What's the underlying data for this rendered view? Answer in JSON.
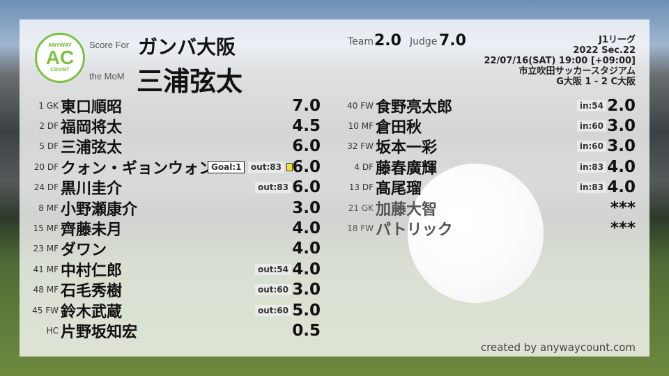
{
  "header": {
    "logo_text": "AC",
    "logo_top": "ANYWAY",
    "logo_bottom": "COUNT",
    "score_for_label": "Score For",
    "team": "ガンバ大阪",
    "mom_label": "the MoM",
    "mom": "三浦弦太",
    "team_label": "Team",
    "team_score": "2.0",
    "judge_label": "Judge",
    "judge_score": "7.0"
  },
  "match": {
    "league": "J1リーグ",
    "season": "2022 Sec.22",
    "datetime": "22/07/16(SAT) 19:00 [+09:00]",
    "venue": "市立吹田サッカースタジアム",
    "result": "G大阪 1 - 2 C大阪"
  },
  "starters": [
    {
      "num": "1 GK",
      "name": "東口順昭",
      "score": "7.0"
    },
    {
      "num": "2 DF",
      "name": "福岡将太",
      "score": "4.5"
    },
    {
      "num": "5 DF",
      "name": "三浦弦太",
      "score": "6.0"
    },
    {
      "num": "20 DF",
      "name": "クォン・ギョンウォン",
      "score": "6.0",
      "goal": "Goal:1",
      "out": "out:83",
      "yellow_card": true
    },
    {
      "num": "24 DF",
      "name": "黒川圭介",
      "score": "6.0",
      "out": "out:83"
    },
    {
      "num": "8 MF",
      "name": "小野瀬康介",
      "score": "3.0"
    },
    {
      "num": "15 MF",
      "name": "齊藤未月",
      "score": "4.0"
    },
    {
      "num": "23 MF",
      "name": "ダワン",
      "score": "4.0"
    },
    {
      "num": "41 MF",
      "name": "中村仁郎",
      "score": "4.0",
      "out": "out:54"
    },
    {
      "num": "48 MF",
      "name": "石毛秀樹",
      "score": "3.0",
      "out": "out:60"
    },
    {
      "num": "45 FW",
      "name": "鈴木武蔵",
      "score": "5.0",
      "out": "out:60"
    },
    {
      "num": "HC",
      "name": "片野坂知宏",
      "score": "0.5"
    }
  ],
  "subs": [
    {
      "num": "40 FW",
      "name": "食野亮太郎",
      "score": "2.0",
      "in": "in:54"
    },
    {
      "num": "10 MF",
      "name": "倉田秋",
      "score": "3.0",
      "in": "in:60"
    },
    {
      "num": "32 FW",
      "name": "坂本一彩",
      "score": "3.0",
      "in": "in:60"
    },
    {
      "num": "4 DF",
      "name": "藤春廣輝",
      "score": "4.0",
      "in": "in:83"
    },
    {
      "num": "13 DF",
      "name": "髙尾瑠",
      "score": "4.0",
      "in": "in:83"
    },
    {
      "num": "21 GK",
      "name": "加藤大智",
      "score": "***",
      "unused": true
    },
    {
      "num": "18 FW",
      "name": "パトリック",
      "score": "***",
      "unused": true
    }
  ],
  "footer": "created by anywaycount.com",
  "colors": {
    "logo": "#7cc142",
    "yellow_card": "#f2e326"
  }
}
